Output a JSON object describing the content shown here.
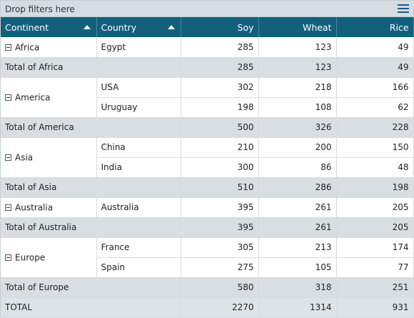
{
  "filter_bar": {
    "text": "Drop filters here",
    "menu_icon": "hamburger-icon"
  },
  "headers": {
    "continent": "Continent",
    "country": "Country",
    "measures": [
      "Soy",
      "Wheat",
      "Rice"
    ]
  },
  "groups": [
    {
      "continent": "Africa",
      "rows": [
        {
          "country": "Egypt",
          "values": [
            285,
            123,
            49
          ]
        }
      ],
      "total_label": "Total of Africa",
      "total": [
        285,
        123,
        49
      ]
    },
    {
      "continent": "America",
      "rows": [
        {
          "country": "USA",
          "values": [
            302,
            218,
            166
          ]
        },
        {
          "country": "Uruguay",
          "values": [
            198,
            108,
            62
          ]
        }
      ],
      "total_label": "Total of America",
      "total": [
        500,
        326,
        228
      ]
    },
    {
      "continent": "Asia",
      "rows": [
        {
          "country": "China",
          "values": [
            210,
            200,
            150
          ]
        },
        {
          "country": "India",
          "values": [
            300,
            86,
            48
          ]
        }
      ],
      "total_label": "Total of Asia",
      "total": [
        510,
        286,
        198
      ]
    },
    {
      "continent": "Australia",
      "rows": [
        {
          "country": "Australia",
          "values": [
            395,
            261,
            205
          ]
        }
      ],
      "total_label": "Total of Australia",
      "total": [
        395,
        261,
        205
      ]
    },
    {
      "continent": "Europe",
      "rows": [
        {
          "country": "France",
          "values": [
            305,
            213,
            174
          ]
        },
        {
          "country": "Spain",
          "values": [
            275,
            105,
            77
          ]
        }
      ],
      "total_label": "Total of Europe",
      "total": [
        580,
        318,
        251
      ]
    }
  ],
  "grand_total": {
    "label": "TOTAL",
    "values": [
      2270,
      1314,
      931
    ]
  },
  "colors": {
    "header_bg": "#13607d",
    "total_bg": "#d8dee2",
    "filter_bar_bg": "#d5dde2"
  }
}
